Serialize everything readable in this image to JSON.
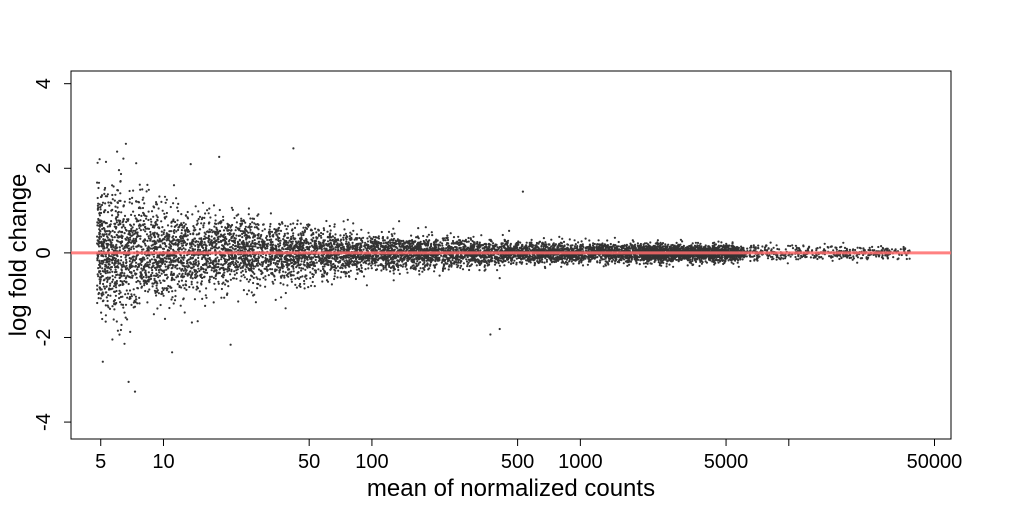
{
  "chart_data": {
    "type": "scatter",
    "title": "",
    "xlabel": "mean of normalized counts",
    "ylabel": "log fold change",
    "x_scale": "log10",
    "xlim": [
      3.6,
      60000
    ],
    "ylim": [
      -4.4,
      4.3
    ],
    "x_ticks": [
      5,
      10,
      50,
      100,
      500,
      1000,
      5000,
      10000,
      50000
    ],
    "x_tick_labels": [
      "5",
      "10",
      "50",
      "100",
      "500",
      "1000",
      "5000",
      "",
      "50000"
    ],
    "y_ticks": [
      -4,
      -2,
      0,
      2,
      4
    ],
    "y_tick_labels": [
      "-4",
      "-2",
      "0",
      "2",
      "4"
    ],
    "reference_line": {
      "y": 0,
      "color": "#ff6b6b"
    },
    "point_color": "#333333",
    "grid": false,
    "legend": "none",
    "series": [
      {
        "points_sample": [
          {
            "x": 6.6,
            "y": 2.58
          },
          {
            "x": 5.3,
            "y": 2.15
          },
          {
            "x": 7.4,
            "y": 2.12
          },
          {
            "x": 13.5,
            "y": 2.1
          },
          {
            "x": 18.5,
            "y": 2.27
          },
          {
            "x": 42,
            "y": 2.47
          },
          {
            "x": 530,
            "y": 1.45
          },
          {
            "x": 6.8,
            "y": -3.05
          },
          {
            "x": 7.3,
            "y": -3.28
          },
          {
            "x": 6.5,
            "y": -2.15
          },
          {
            "x": 21,
            "y": -2.17
          },
          {
            "x": 11,
            "y": -2.35
          },
          {
            "x": 370,
            "y": -1.93
          },
          {
            "x": 410,
            "y": -1.8
          },
          {
            "x": 17000,
            "y": 0.02
          },
          {
            "x": 38000,
            "y": 0.03
          },
          {
            "x": 8000,
            "y": 0.1
          },
          {
            "x": 12000,
            "y": -0.1
          }
        ],
        "n_points_approx": 9000,
        "spread_profile": [
          {
            "x": 5,
            "sd": 0.8
          },
          {
            "x": 10,
            "sd": 0.55
          },
          {
            "x": 50,
            "sd": 0.32
          },
          {
            "x": 100,
            "sd": 0.22
          },
          {
            "x": 500,
            "sd": 0.14
          },
          {
            "x": 1000,
            "sd": 0.12
          },
          {
            "x": 5000,
            "sd": 0.1
          },
          {
            "x": 30000,
            "sd": 0.08
          }
        ]
      }
    ]
  }
}
